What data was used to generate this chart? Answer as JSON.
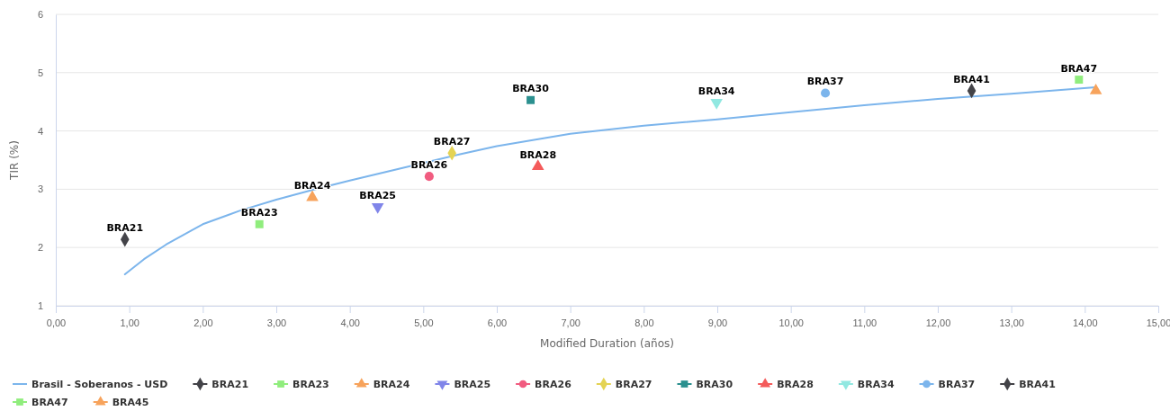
{
  "chart_data": {
    "type": "scatter",
    "xlabel": "Modified Duration (años)",
    "ylabel": "TIR (%)",
    "xlim": [
      0,
      15
    ],
    "ylim": [
      1,
      6
    ],
    "xticks": [
      {
        "value": 0,
        "label": "0,00"
      },
      {
        "value": 1,
        "label": "1,00"
      },
      {
        "value": 2,
        "label": "2,00"
      },
      {
        "value": 3,
        "label": "3,00"
      },
      {
        "value": 4,
        "label": "4,00"
      },
      {
        "value": 5,
        "label": "5,00"
      },
      {
        "value": 6,
        "label": "6,00"
      },
      {
        "value": 7,
        "label": "7,00"
      },
      {
        "value": 8,
        "label": "8,00"
      },
      {
        "value": 9,
        "label": "9,00"
      },
      {
        "value": 10,
        "label": "10,00"
      },
      {
        "value": 11,
        "label": "11,00"
      },
      {
        "value": 12,
        "label": "12,00"
      },
      {
        "value": 13,
        "label": "13,00"
      },
      {
        "value": 14,
        "label": "14,00"
      },
      {
        "value": 15,
        "label": "15,00"
      }
    ],
    "yticks": [
      1,
      2,
      3,
      4,
      5,
      6
    ],
    "grid": "y",
    "legend": "bottom",
    "series": [
      {
        "name": "Brasil - Soberanos - USD",
        "type": "line",
        "color": "#7cb5ec",
        "marker": "none",
        "x": [
          0.94,
          1.2,
          1.5,
          2,
          2.5,
          3,
          3.5,
          4,
          4.5,
          5,
          5.5,
          6,
          7,
          8,
          9,
          10,
          11,
          12,
          13,
          14.15
        ],
        "values": [
          1.54,
          1.8,
          2.05,
          2.4,
          2.63,
          2.82,
          2.99,
          3.15,
          3.3,
          3.45,
          3.6,
          3.74,
          3.95,
          4.09,
          4.2,
          4.32,
          4.44,
          4.55,
          4.64,
          4.75
        ]
      },
      {
        "name": "BRA21",
        "color": "#434348",
        "marker": "diamond",
        "x": [
          0.94
        ],
        "values": [
          2.14
        ],
        "value_labels": [
          "BRA21"
        ]
      },
      {
        "name": "BRA23",
        "color": "#90ed7d",
        "marker": "square",
        "x": [
          2.77
        ],
        "values": [
          2.4
        ],
        "value_labels": [
          "BRA23"
        ]
      },
      {
        "name": "BRA24",
        "color": "#f7a35c",
        "marker": "triangle",
        "x": [
          3.49
        ],
        "values": [
          2.86
        ],
        "value_labels": [
          "BRA24"
        ]
      },
      {
        "name": "BRA25",
        "color": "#8085e9",
        "marker": "triangle-down",
        "x": [
          4.38
        ],
        "values": [
          2.7
        ],
        "value_labels": [
          "BRA25"
        ]
      },
      {
        "name": "BRA26",
        "color": "#f15c80",
        "marker": "circle",
        "x": [
          5.08
        ],
        "values": [
          3.22
        ],
        "value_labels": [
          "BRA26"
        ]
      },
      {
        "name": "BRA27",
        "color": "#e4d354",
        "marker": "diamond",
        "x": [
          5.39
        ],
        "values": [
          3.62
        ],
        "value_labels": [
          "BRA27"
        ]
      },
      {
        "name": "BRA30",
        "color": "#2b908f",
        "marker": "square",
        "x": [
          6.46
        ],
        "values": [
          4.53
        ],
        "value_labels": [
          "BRA30"
        ]
      },
      {
        "name": "BRA28",
        "color": "#f45b5b",
        "marker": "triangle",
        "x": [
          6.56
        ],
        "values": [
          3.39
        ],
        "value_labels": [
          "BRA28"
        ]
      },
      {
        "name": "BRA34",
        "color": "#91e8e1",
        "marker": "triangle-down",
        "x": [
          8.99
        ],
        "values": [
          4.49
        ],
        "value_labels": [
          "BRA34"
        ]
      },
      {
        "name": "BRA37",
        "color": "#7cb5ec",
        "marker": "circle",
        "x": [
          10.47
        ],
        "values": [
          4.65
        ],
        "value_labels": [
          "BRA37"
        ]
      },
      {
        "name": "BRA41",
        "color": "#434348",
        "marker": "diamond",
        "x": [
          12.46
        ],
        "values": [
          4.69
        ],
        "value_labels": [
          "BRA41"
        ]
      },
      {
        "name": "BRA47",
        "color": "#90ed7d",
        "marker": "square",
        "x": [
          13.92
        ],
        "values": [
          4.88
        ],
        "value_labels": [
          "BRA47"
        ]
      },
      {
        "name": "BRA45",
        "color": "#f7a35c",
        "marker": "triangle",
        "x": [
          14.15
        ],
        "values": [
          4.69
        ],
        "value_labels": [
          null
        ]
      }
    ]
  }
}
